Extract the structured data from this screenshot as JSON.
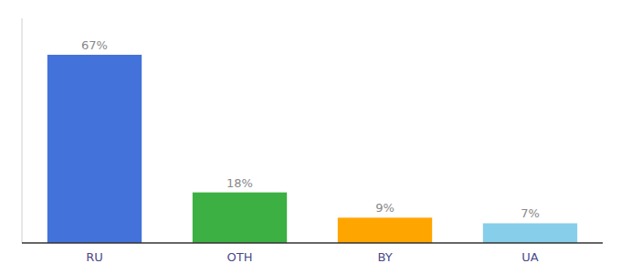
{
  "chart_data": {
    "type": "bar",
    "categories": [
      "RU",
      "OTH",
      "BY",
      "UA"
    ],
    "values": [
      67,
      18,
      9,
      7
    ],
    "value_labels": [
      "67%",
      "18%",
      "9%",
      "7%"
    ],
    "colors": [
      "#4472DB",
      "#3CB043",
      "#FFA500",
      "#87CEEB"
    ],
    "ylim": [
      0,
      80
    ],
    "data_labels": true,
    "tick_labels": "x",
    "grid": false
  }
}
